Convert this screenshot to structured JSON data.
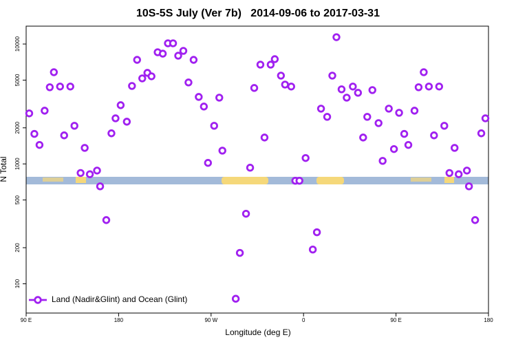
{
  "chart_data": {
    "type": "scatter",
    "title": "10S-5S July (Ver 7b)   2014-09-06 to 2017-03-31",
    "x_label": "Longitude (deg E)",
    "y_label": "N Total",
    "log_y": true,
    "legend": "bottom-left",
    "xlim": [
      90,
      540
    ],
    "xticks": [
      {
        "value": 90,
        "label": "90 E"
      },
      180,
      {
        "value": 270,
        "label": "90 W"
      },
      {
        "value": 360,
        "label": "0"
      },
      {
        "value": 450,
        "label": "90 E"
      },
      {
        "value": 540,
        "label": "180"
      }
    ],
    "ylim": [
      57,
      14100
    ],
    "yticks": [
      100,
      200,
      500,
      1000,
      2000,
      5000,
      10000
    ],
    "series": [
      {
        "name": "Land (Nadir&Glint) and Ocean (Glint)",
        "color": "#a020f0",
        "x": [
          93,
          98,
          103,
          108,
          113,
          117,
          123,
          127,
          133,
          137,
          143,
          147,
          152,
          159,
          162,
          168,
          173,
          177,
          182,
          188,
          193,
          198,
          203,
          208,
          212,
          218,
          223,
          228,
          233,
          238,
          243,
          248,
          253,
          258,
          263,
          273,
          267,
          278,
          281,
          294,
          298,
          304,
          308,
          312,
          318,
          322,
          328,
          332,
          338,
          342,
          348,
          352,
          356,
          362,
          369,
          373,
          377,
          383,
          388,
          392,
          397,
          402,
          408,
          413,
          418,
          422,
          427,
          433,
          437,
          443,
          448,
          453,
          458,
          462,
          468,
          472,
          477,
          482,
          487,
          492,
          497,
          502,
          507,
          511,
          519,
          521,
          527,
          533,
          537
        ],
        "values": [
          2640,
          1780,
          1440,
          2780,
          4360,
          5820,
          4420,
          1730,
          4420,
          2080,
          840,
          1360,
          820,
          880,
          650,
          340,
          1800,
          2400,
          3090,
          2250,
          4470,
          7380,
          5170,
          5750,
          5380,
          8540,
          8310,
          10140,
          10140,
          7990,
          8770,
          4780,
          7380,
          3620,
          3010,
          2080,
          1020,
          3570,
          1290,
          75,
          181,
          384,
          930,
          4300,
          6730,
          1660,
          6730,
          7480,
          5450,
          4590,
          4420,
          724,
          724,
          1120,
          193,
          269,
          2890,
          2470,
          5450,
          11410,
          4190,
          3570,
          4420,
          3920,
          1660,
          2470,
          4130,
          2190,
          1060,
          2890,
          1330,
          2670,
          1780,
          1440,
          2780,
          4360,
          5820,
          4420,
          1730,
          4420,
          2080,
          840,
          1360,
          820,
          880,
          650,
          340,
          1800,
          2400
        ]
      }
    ]
  }
}
